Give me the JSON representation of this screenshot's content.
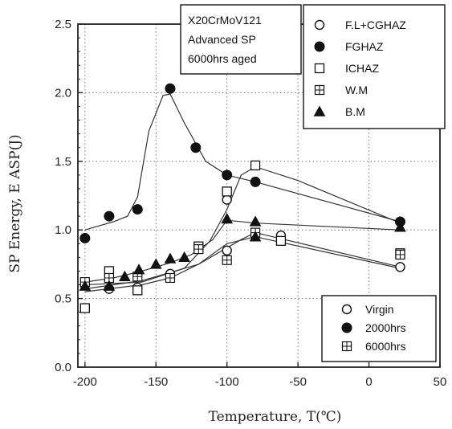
{
  "chart_data": {
    "type": "scatter",
    "xlabel": "Temperature, T(℃)",
    "ylabel": "SP Energy, E ASP(J)",
    "xlim": [
      -205,
      50
    ],
    "ylim": [
      0.0,
      2.5
    ],
    "xticks": [
      "-200",
      "-150",
      "-100",
      "-50",
      "0",
      "50"
    ],
    "yticks": [
      "0.0",
      "0.5",
      "1.0",
      "1.5",
      "2.0",
      "2.5"
    ],
    "grid": "dotted",
    "info_box": [
      "X20CrMoV121",
      "Advanced SP",
      "6000hrs aged"
    ],
    "legend_zones": {
      "position": "top-right",
      "entries": [
        {
          "name": "F.L+CGHAZ",
          "marker": "open-circle"
        },
        {
          "name": "FGHAZ",
          "marker": "filled-circle"
        },
        {
          "name": "ICHAZ",
          "marker": "open-square"
        },
        {
          "name": "W.M",
          "marker": "crossed-square"
        },
        {
          "name": "B.M",
          "marker": "filled-triangle"
        }
      ]
    },
    "legend_aging": {
      "position": "bottom-right",
      "entries": [
        {
          "name": "Virgin",
          "marker": "open-circle"
        },
        {
          "name": "2000hrs",
          "marker": "filled-circle"
        },
        {
          "name": "6000hrs",
          "marker": "crossed-square"
        }
      ]
    },
    "series": [
      {
        "name": "F.L+CGHAZ",
        "marker": "open-circle",
        "points": [
          [
            -200,
            0.6
          ],
          [
            -183,
            0.57
          ],
          [
            -163,
            0.58
          ],
          [
            -140,
            0.68
          ],
          [
            -100,
            0.85
          ],
          [
            -100,
            1.22
          ],
          [
            -80,
            0.97
          ],
          [
            -62,
            0.96
          ],
          [
            22,
            0.73
          ]
        ],
        "line": [
          [
            -200,
            0.57
          ],
          [
            -160,
            0.63
          ],
          [
            -120,
            0.75
          ],
          [
            -90,
            0.93
          ],
          [
            -80,
            0.98
          ],
          [
            22,
            0.73
          ]
        ]
      },
      {
        "name": "FGHAZ",
        "marker": "filled-circle",
        "points": [
          [
            -200,
            0.94
          ],
          [
            -183,
            1.1
          ],
          [
            -163,
            1.15
          ],
          [
            -140,
            2.03
          ],
          [
            -122,
            1.6
          ],
          [
            -100,
            1.4
          ],
          [
            -80,
            1.35
          ],
          [
            22,
            1.06
          ]
        ],
        "line": [
          [
            -200,
            1.0
          ],
          [
            -180,
            1.06
          ],
          [
            -170,
            1.1
          ],
          [
            -163,
            1.24
          ],
          [
            -155,
            1.72
          ],
          [
            -145,
            1.98
          ],
          [
            -140,
            1.99
          ],
          [
            -130,
            1.78
          ],
          [
            -115,
            1.5
          ],
          [
            -100,
            1.4
          ],
          [
            -80,
            1.35
          ],
          [
            22,
            1.06
          ]
        ]
      },
      {
        "name": "ICHAZ",
        "marker": "open-square",
        "points": [
          [
            -200,
            0.43
          ],
          [
            -183,
            0.7
          ],
          [
            -163,
            0.56
          ],
          [
            -120,
            0.88
          ],
          [
            -100,
            1.28
          ],
          [
            -80,
            1.47
          ],
          [
            -62,
            0.92
          ],
          [
            22,
            0.83
          ]
        ],
        "line": [
          [
            -200,
            0.6
          ],
          [
            -160,
            0.62
          ],
          [
            -130,
            0.72
          ],
          [
            -112,
            0.92
          ],
          [
            -100,
            1.15
          ],
          [
            -90,
            1.4
          ],
          [
            -80,
            1.46
          ],
          [
            -50,
            1.36
          ],
          [
            22,
            1.05
          ]
        ]
      },
      {
        "name": "W.M",
        "marker": "crossed-square",
        "points": [
          [
            -200,
            0.62
          ],
          [
            -183,
            0.65
          ],
          [
            -163,
            0.66
          ],
          [
            -140,
            0.65
          ],
          [
            -120,
            0.86
          ],
          [
            -100,
            0.78
          ],
          [
            -80,
            0.98
          ],
          [
            22,
            0.82
          ]
        ],
        "line": [
          [
            -200,
            0.55
          ],
          [
            -160,
            0.6
          ],
          [
            -140,
            0.65
          ],
          [
            -120,
            0.75
          ],
          [
            -100,
            0.9
          ],
          [
            -80,
            0.95
          ],
          [
            22,
            0.72
          ]
        ]
      },
      {
        "name": "B.M",
        "marker": "filled-triangle",
        "points": [
          [
            -200,
            0.59
          ],
          [
            -183,
            0.59
          ],
          [
            -172,
            0.66
          ],
          [
            -162,
            0.71
          ],
          [
            -150,
            0.75
          ],
          [
            -140,
            0.79
          ],
          [
            -130,
            0.8
          ],
          [
            -100,
            1.08
          ],
          [
            -80,
            1.06
          ],
          [
            -80,
            0.95
          ],
          [
            22,
            1.02
          ]
        ],
        "line": [
          [
            -200,
            0.62
          ],
          [
            -180,
            0.65
          ],
          [
            -160,
            0.7
          ],
          [
            -140,
            0.76
          ],
          [
            -125,
            0.82
          ],
          [
            -110,
            0.93
          ],
          [
            -100,
            1.07
          ],
          [
            -80,
            1.05
          ],
          [
            22,
            1.0
          ]
        ]
      }
    ]
  }
}
